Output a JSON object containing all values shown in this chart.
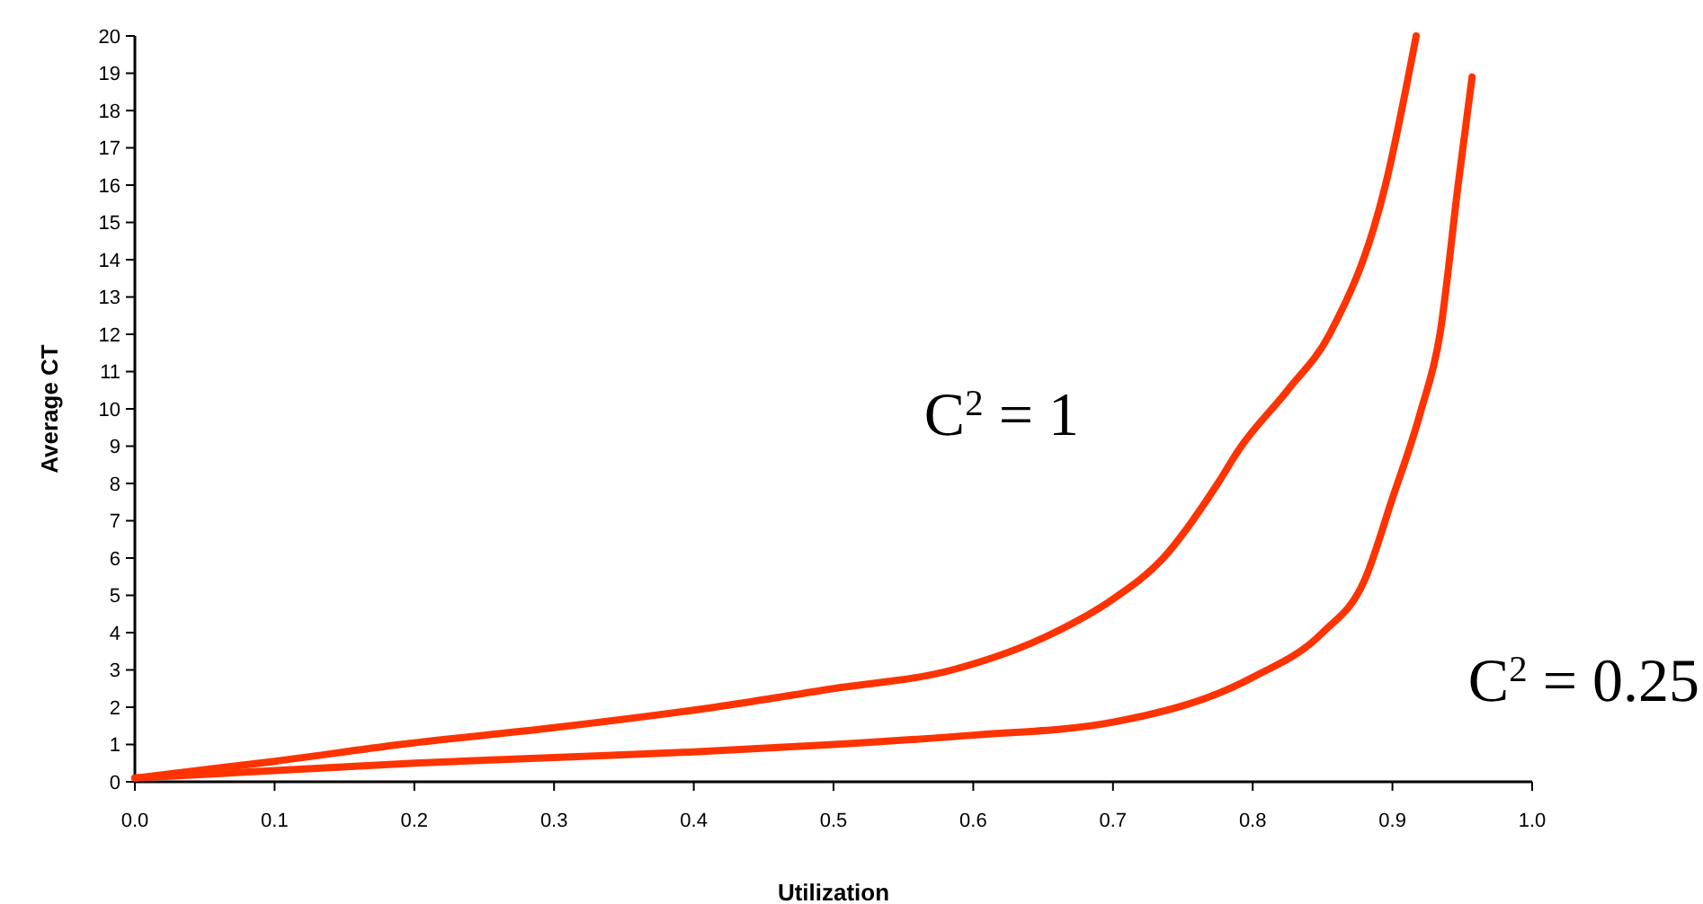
{
  "chart_data": {
    "type": "line",
    "xlabel": "Utilization",
    "ylabel": "Average CT",
    "xlim": [
      0,
      1
    ],
    "xticks": [
      {
        "value": 0,
        "label": "0.0"
      },
      0.1,
      0.2,
      0.3,
      0.4,
      0.5,
      0.6,
      0.7,
      0.8,
      0.9,
      {
        "value": 1,
        "label": "1.0"
      }
    ],
    "ylim": [
      0,
      20
    ],
    "yticks": [
      0,
      1,
      2,
      3,
      4,
      5,
      6,
      7,
      8,
      9,
      10,
      11,
      12,
      13,
      14,
      15,
      16,
      17,
      18,
      19,
      20
    ],
    "grid": false,
    "marker": "none",
    "line_style": "solid",
    "series": [
      {
        "name": "C$^{2}$ = 1",
        "color": "#ff3300",
        "x": [
          0,
          0.1,
          0.19,
          0.3,
          0.415,
          0.5,
          0.585,
          0.658,
          0.7,
          0.736,
          0.775,
          0.79,
          0.825,
          0.855,
          0.895,
          0.917
        ],
        "values": [
          0.1,
          0.55,
          1,
          1.45,
          2,
          2.5,
          3,
          4,
          4.9,
          6,
          8,
          8.9,
          10.5,
          12,
          16,
          20
        ]
      },
      {
        "name": "C$^{2}$ = 0.25",
        "color": "#ff3300",
        "x": [
          0,
          0.1,
          0.2,
          0.3,
          0.4,
          0.5,
          0.6,
          0.7,
          0.8,
          0.85,
          0.88,
          0.9,
          0.92,
          0.934,
          0.947,
          0.957
        ],
        "values": [
          0.1,
          0.3,
          0.5,
          0.65,
          0.8,
          1.0,
          1.25,
          1.6,
          2.8,
          4,
          5.4,
          7.6,
          9.9,
          12,
          16,
          18.9
        ]
      }
    ]
  }
}
